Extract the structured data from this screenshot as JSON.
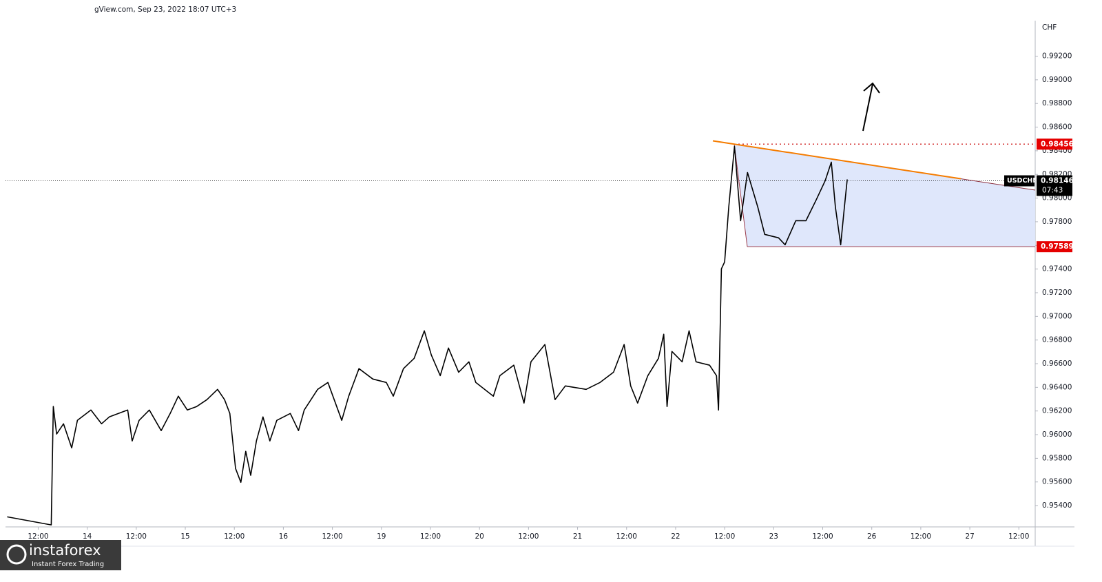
{
  "header": "gView.com, Sep 23, 2022 18:07 UTC+3",
  "watermark": {
    "brand": "instaforex",
    "tagline": "Instant Forex Trading"
  },
  "chart_data": {
    "type": "line",
    "y_unit": "CHF",
    "x": [
      -7.6,
      3.2,
      3.7,
      4.5,
      6.2,
      8.2,
      9.6,
      12.9,
      15.5,
      17.4,
      21.9,
      23.0,
      24.7,
      27.2,
      30.1,
      32.3,
      34.3,
      36.5,
      38.8,
      41.3,
      43.9,
      45.6,
      46.9,
      48.3,
      49.6,
      50.8,
      52.0,
      53.4,
      55.0,
      56.7,
      58.4,
      61.7,
      63.7,
      65.1,
      68.4,
      70.9,
      74.3,
      76.0,
      78.5,
      81.9,
      85.2,
      86.9,
      89.4,
      92.0,
      94.5,
      96.2,
      98.4,
      100.4,
      102.9,
      105.4,
      107.1,
      111.4,
      113.0,
      116.4,
      118.9,
      120.6,
      124.0,
      126.5,
      129.0,
      134.1,
      137.5,
      140.8,
      143.4,
      145.0,
      146.7,
      149.2,
      151.8,
      153.1,
      153.9,
      155.1,
      157.6,
      159.3,
      161.0,
      164.3,
      166.0,
      166.5,
      167.2,
      168.0,
      169.0,
      170.4,
      171.9,
      173.6,
      176.1,
      177.8,
      181.2,
      182.8,
      185.4,
      187.9,
      190.4,
      192.6,
      194.1,
      195.1,
      196.4,
      197.3,
      198.0
    ],
    "series": [
      {
        "name": "USDCHF",
        "color": "#000000",
        "values": [
          0.95305,
          0.95237,
          0.96238,
          0.96005,
          0.96092,
          0.95888,
          0.96121,
          0.96208,
          0.96092,
          0.9615,
          0.96208,
          0.95947,
          0.96121,
          0.96208,
          0.96034,
          0.96179,
          0.96325,
          0.96208,
          0.96238,
          0.96296,
          0.96383,
          0.96296,
          0.96179,
          0.95714,
          0.95597,
          0.95859,
          0.95656,
          0.95947,
          0.9615,
          0.95947,
          0.96121,
          0.96179,
          0.96034,
          0.96208,
          0.96383,
          0.96441,
          0.96121,
          0.96325,
          0.96558,
          0.9647,
          0.96441,
          0.96325,
          0.96558,
          0.96645,
          0.96878,
          0.96674,
          0.96499,
          0.96732,
          0.96528,
          0.96616,
          0.96441,
          0.96325,
          0.96499,
          0.96587,
          0.96267,
          0.96616,
          0.96762,
          0.96296,
          0.96412,
          0.96383,
          0.96441,
          0.96528,
          0.96762,
          0.96412,
          0.96267,
          0.96499,
          0.96645,
          0.96849,
          0.96238,
          0.96703,
          0.96616,
          0.96878,
          0.96616,
          0.96587,
          0.96499,
          0.96208,
          0.97402,
          0.9746,
          0.97925,
          0.98438,
          0.97809,
          0.98216,
          0.97925,
          0.97693,
          0.97664,
          0.97605,
          0.97809,
          0.97809,
          0.97984,
          0.98147,
          0.98304,
          0.97925,
          0.97605,
          0.97925,
          0.98158
        ]
      }
    ],
    "xlim": [
      -8,
      244
    ],
    "xticks": [
      {
        "value": 0,
        "label": "12:00"
      },
      {
        "value": 12,
        "label": "14"
      },
      {
        "value": 24,
        "label": "12:00"
      },
      {
        "value": 36,
        "label": "15"
      },
      {
        "value": 48,
        "label": "12:00"
      },
      {
        "value": 60,
        "label": "16"
      },
      {
        "value": 72,
        "label": "12:00"
      },
      {
        "value": 84,
        "label": "19"
      },
      {
        "value": 96,
        "label": "12:00"
      },
      {
        "value": 108,
        "label": "20"
      },
      {
        "value": 120,
        "label": "12:00"
      },
      {
        "value": 132,
        "label": "21"
      },
      {
        "value": 144,
        "label": "12:00"
      },
      {
        "value": 156,
        "label": "22"
      },
      {
        "value": 168,
        "label": "12:00"
      },
      {
        "value": 180,
        "label": "23"
      },
      {
        "value": 192,
        "label": "12:00"
      },
      {
        "value": 204,
        "label": "26"
      },
      {
        "value": 216,
        "label": "12:00"
      },
      {
        "value": 228,
        "label": "27"
      },
      {
        "value": 240,
        "label": "12:00"
      }
    ],
    "ylim": [
      0.9522,
      0.995
    ],
    "yticks": [
      {
        "value": 0.954,
        "label": "0.95400"
      },
      {
        "value": 0.956,
        "label": "0.95600"
      },
      {
        "value": 0.958,
        "label": "0.95800"
      },
      {
        "value": 0.96,
        "label": "0.96000"
      },
      {
        "value": 0.962,
        "label": "0.96200"
      },
      {
        "value": 0.964,
        "label": "0.96400"
      },
      {
        "value": 0.966,
        "label": "0.96600"
      },
      {
        "value": 0.968,
        "label": "0.96800"
      },
      {
        "value": 0.97,
        "label": "0.97000"
      },
      {
        "value": 0.972,
        "label": "0.97200"
      },
      {
        "value": 0.974,
        "label": "0.97400"
      },
      {
        "value": 0.976,
        "label": "0.97600"
      },
      {
        "value": 0.978,
        "label": "0.97800"
      },
      {
        "value": 0.98,
        "label": "0.98000"
      },
      {
        "value": 0.982,
        "label": "0.98200"
      },
      {
        "value": 0.984,
        "label": "0.98400"
      },
      {
        "value": 0.986,
        "label": "0.98600"
      },
      {
        "value": 0.988,
        "label": "0.98800"
      },
      {
        "value": 0.99,
        "label": "0.99000"
      },
      {
        "value": 0.992,
        "label": "0.99200"
      }
    ],
    "resistance": 0.98456,
    "support": 0.97589,
    "last_price": 0.98146,
    "countdown": "07:43"
  }
}
